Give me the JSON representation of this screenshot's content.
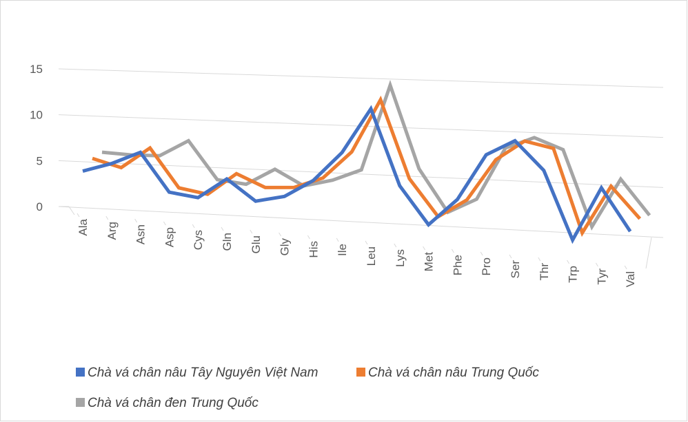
{
  "chart_data": {
    "type": "line3d",
    "categories": [
      "Ala",
      "Arg",
      "Asn",
      "Asp",
      "Cys",
      "Gln",
      "Glu",
      "Gly",
      "His",
      "Ile",
      "Leu",
      "Lys",
      "Met",
      "Phe",
      "Pro",
      "Ser",
      "Thr",
      "Trp",
      "Tyr",
      "Val"
    ],
    "series": [
      {
        "name": "Chà vá chân nâu Tây Nguyên Việt Nam",
        "color": "#4472c4",
        "values": [
          2.7,
          3.8,
          5.3,
          1.3,
          1.0,
          3.3,
          1.2,
          2.0,
          4.0,
          7.3,
          12.3,
          4.3,
          0.4,
          3.4,
          8.5,
          10.3,
          7.4,
          0.2,
          6.1,
          1.7
        ]
      },
      {
        "name": "Chà vá chân nâu Trung Quốc",
        "color": "#ed7d31",
        "values": [
          3.4,
          2.7,
          5.1,
          1.1,
          0.7,
          3.2,
          2.0,
          2.3,
          3.6,
          6.7,
          12.6,
          4.4,
          0.6,
          2.7,
          7.3,
          9.6,
          9.1,
          0.3,
          5.6,
          2.4
        ]
      },
      {
        "name": "Chà vá chân đen Trung Quốc",
        "color": "#a5a5a5",
        "values": [
          3.4,
          3.4,
          3.6,
          5.5,
          1.6,
          1.4,
          3.3,
          1.8,
          2.7,
          4.1,
          13.5,
          4.8,
          0.4,
          2.1,
          7.9,
          9.3,
          8.3,
          0.3,
          5.7,
          2.1
        ]
      }
    ],
    "ylim": [
      0,
      15
    ],
    "yticks": [
      0,
      5,
      10,
      15
    ],
    "grid": true
  }
}
